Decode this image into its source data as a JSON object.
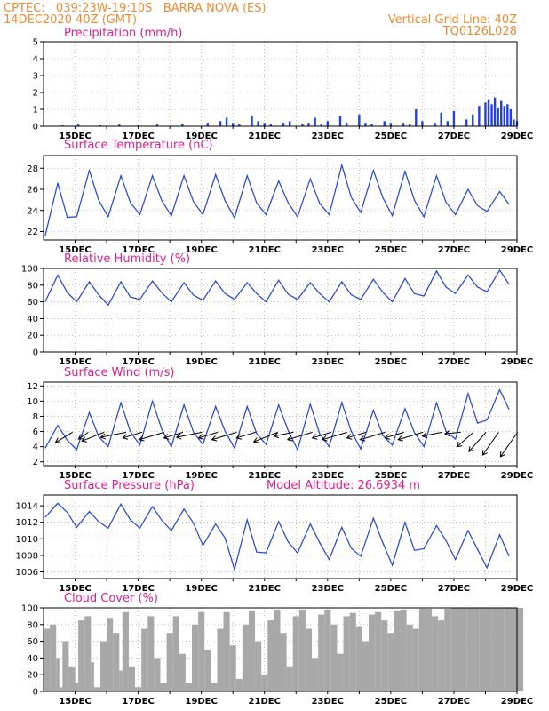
{
  "header": {
    "line1_left": "CPTEC:   039:23W-19:10S   BARRA NOVA (ES)",
    "line2_left": "14DEC2020 40Z (GMT)",
    "line1_right": "Vertical Grid Line: 40Z",
    "line2_right": "TQ0126L028"
  },
  "colors": {
    "header": "#f08a30",
    "title": "#e0208a",
    "line": "#2040e0",
    "cloud": "#a8a8a8",
    "bar": "#2040e0"
  },
  "x_labels": [
    "15DEC",
    "17DEC",
    "19DEC",
    "21DEC",
    "23DEC",
    "25DEC",
    "27DEC",
    "29DEC"
  ],
  "model_altitude": "Model Altitude: 26.6934 m",
  "chart_data": [
    {
      "id": "precip",
      "type": "bar",
      "title": "Precipitation (mm/h)",
      "ylim": [
        0,
        5
      ],
      "yticks": [
        0,
        1,
        2,
        3,
        4,
        5
      ],
      "unit": "mm/h",
      "x_range_days": [
        14.0,
        29.0
      ],
      "x": [
        14.6,
        15.1,
        15.8,
        16.4,
        17.0,
        17.6,
        18.4,
        19.2,
        19.6,
        19.8,
        20.0,
        20.2,
        20.6,
        20.8,
        21.0,
        21.2,
        21.6,
        21.8,
        22.2,
        22.4,
        22.6,
        22.8,
        23.0,
        23.4,
        23.6,
        24.0,
        24.2,
        24.4,
        24.8,
        25.0,
        25.4,
        25.6,
        25.8,
        26.0,
        26.4,
        26.6,
        26.8,
        27.0,
        27.4,
        27.6,
        27.8,
        28.0,
        28.1,
        28.2,
        28.3,
        28.4,
        28.5,
        28.6,
        28.7,
        28.8,
        28.9,
        29.0
      ],
      "values": [
        0.05,
        0.1,
        0.05,
        0.1,
        0.05,
        0.1,
        0.15,
        0.2,
        0.3,
        0.5,
        0.2,
        0.1,
        0.6,
        0.3,
        0.2,
        0.1,
        0.2,
        0.3,
        0.15,
        0.2,
        0.5,
        0.1,
        0.3,
        0.6,
        0.2,
        0.7,
        0.2,
        0.15,
        0.3,
        0.2,
        0.2,
        0.1,
        1.0,
        0.3,
        0.2,
        0.8,
        0.3,
        0.9,
        0.4,
        0.7,
        1.2,
        1.4,
        1.6,
        1.3,
        1.7,
        1.1,
        1.5,
        1.2,
        1.3,
        1.0,
        0.4,
        0.3
      ]
    },
    {
      "id": "temp",
      "type": "line",
      "title": "Surface Temperature (nC)",
      "ylim": [
        21.2,
        29.2
      ],
      "yticks": [
        22,
        24,
        26,
        28
      ],
      "unit": "nC",
      "x_range_days": [
        14.0,
        29.0
      ],
      "daily_min": [
        21.6,
        23.4,
        23.4,
        23.6,
        23.5,
        23.6,
        23.3,
        23.6,
        23.4,
        23.6,
        23.8,
        23.5,
        23.4,
        23.6,
        23.9,
        23.6
      ],
      "daily_max": [
        26.6,
        27.8,
        27.3,
        27.3,
        27.3,
        27.4,
        27.3,
        26.8,
        27.0,
        28.3,
        27.8,
        27.7,
        27.3,
        26.0,
        25.8,
        25.5
      ]
    },
    {
      "id": "rh",
      "type": "line",
      "title": "Relative Humidity (%)",
      "ylim": [
        0,
        100
      ],
      "yticks": [
        0,
        20,
        40,
        60,
        80,
        100
      ],
      "unit": "%",
      "x_range_days": [
        14.0,
        29.0
      ],
      "daily_min": [
        60,
        60,
        56,
        63,
        60,
        62,
        63,
        60,
        63,
        60,
        63,
        60,
        67,
        70,
        72,
        75
      ],
      "daily_max": [
        92,
        84,
        84,
        85,
        83,
        85,
        83,
        86,
        83,
        84,
        87,
        88,
        97,
        92,
        98,
        90
      ]
    },
    {
      "id": "wind",
      "type": "line",
      "title": "Surface Wind (m/s)",
      "ylim": [
        1.5,
        12.5
      ],
      "yticks": [
        2,
        4,
        6,
        8,
        10,
        12
      ],
      "unit": "m/s",
      "x_range_days": [
        14.0,
        29.0
      ],
      "daily_min": [
        3.8,
        3.6,
        4.0,
        4.2,
        4.0,
        4.3,
        3.8,
        4.3,
        3.6,
        4.0,
        3.7,
        4.2,
        4.0,
        5.0,
        7.5,
        8.5
      ],
      "daily_max": [
        6.8,
        8.5,
        9.8,
        10.0,
        9.5,
        9.3,
        9.3,
        9.5,
        9.6,
        9.8,
        8.8,
        9.0,
        9.8,
        11.0,
        11.5,
        12.0
      ],
      "vectors": {
        "x": [
          14.3,
          14.8,
          15.3,
          16.0,
          16.5,
          17.2,
          17.8,
          18.4,
          18.9,
          19.5,
          20.1,
          20.8,
          21.3,
          21.9,
          22.5,
          23.0,
          23.6,
          24.2,
          24.8,
          25.4,
          26.0,
          26.6,
          27.0,
          27.4,
          27.8,
          28.4
        ],
        "dx": [
          1,
          1,
          1,
          1,
          1,
          1,
          1,
          1,
          1,
          1,
          1,
          1,
          1,
          1,
          1,
          1,
          1,
          1,
          1,
          1,
          1,
          1,
          0.9,
          0.8,
          0.7,
          0.7
        ],
        "dy": [
          0.6,
          0.7,
          0.4,
          0.2,
          0.3,
          0.3,
          0.3,
          0.2,
          0.3,
          0.3,
          0.3,
          0.4,
          0.2,
          0.3,
          0.3,
          0.3,
          0.3,
          0.3,
          0.3,
          0.3,
          0.2,
          0.1,
          0.8,
          0.9,
          1,
          1
        ],
        "mag": [
          1.0,
          0.6,
          1.2,
          1.3,
          1.0,
          1.3,
          1.0,
          1.3,
          1.0,
          1.3,
          1.0,
          1.3,
          1.0,
          1.3,
          1.0,
          1.3,
          1.0,
          1.3,
          1.0,
          1.3,
          1.0,
          0.8,
          1.1,
          1.3,
          1.4,
          1.5
        ]
      }
    },
    {
      "id": "pressure",
      "type": "line",
      "title": "Surface Pressure (hPa)",
      "ylim": [
        1005.2,
        1015.3
      ],
      "yticks": [
        1006,
        1008,
        1010,
        1012,
        1014
      ],
      "unit": "hPa",
      "x_range_days": [
        14.0,
        29.0
      ],
      "daily_min": [
        1012.6,
        1011.4,
        1011.3,
        1011.3,
        1011.0,
        1009.2,
        1006.3,
        1008.3,
        1008.3,
        1007.5,
        1007.9,
        1006.8,
        1008.8,
        1007.5,
        1006.5,
        1006.0
      ],
      "daily_max": [
        1014.3,
        1013.3,
        1014.2,
        1013.9,
        1013.6,
        1011.8,
        1012.3,
        1012.1,
        1011.8,
        1011.4,
        1012.5,
        1012.0,
        1011.6,
        1011.0,
        1010.5,
        1010.0
      ]
    },
    {
      "id": "cloud",
      "type": "area",
      "title": "Cloud Cover (%)",
      "ylim": [
        0,
        100
      ],
      "yticks": [
        0,
        20,
        40,
        60,
        80,
        100
      ],
      "unit": "%",
      "x_range_days": [
        14.0,
        29.0
      ],
      "x": [
        14.0,
        14.2,
        14.4,
        14.5,
        14.6,
        14.8,
        15.0,
        15.1,
        15.3,
        15.5,
        15.6,
        15.8,
        16.0,
        16.2,
        16.4,
        16.5,
        16.7,
        16.9,
        17.1,
        17.3,
        17.5,
        17.7,
        17.9,
        18.1,
        18.3,
        18.5,
        18.7,
        18.9,
        19.1,
        19.3,
        19.5,
        19.7,
        19.9,
        20.1,
        20.3,
        20.5,
        20.7,
        20.9,
        21.1,
        21.3,
        21.5,
        21.7,
        21.9,
        22.1,
        22.3,
        22.5,
        22.7,
        22.9,
        23.1,
        23.3,
        23.5,
        23.7,
        23.9,
        24.1,
        24.3,
        24.5,
        24.7,
        24.9,
        25.1,
        25.3,
        25.5,
        25.7,
        25.9,
        26.1,
        26.3,
        26.5,
        26.7,
        26.9,
        27.1,
        27.4,
        27.8,
        28.2,
        28.6,
        29.0
      ],
      "values": [
        75,
        80,
        40,
        5,
        60,
        30,
        10,
        85,
        90,
        35,
        5,
        60,
        88,
        70,
        25,
        95,
        30,
        5,
        75,
        90,
        40,
        10,
        70,
        90,
        45,
        10,
        80,
        95,
        50,
        10,
        75,
        95,
        55,
        15,
        80,
        97,
        60,
        20,
        85,
        98,
        70,
        30,
        90,
        98,
        75,
        40,
        92,
        98,
        80,
        45,
        90,
        94,
        78,
        60,
        92,
        95,
        85,
        70,
        97,
        98,
        80,
        75,
        99,
        99,
        90,
        85,
        99,
        100,
        100,
        100,
        100,
        100,
        100,
        100
      ]
    }
  ]
}
